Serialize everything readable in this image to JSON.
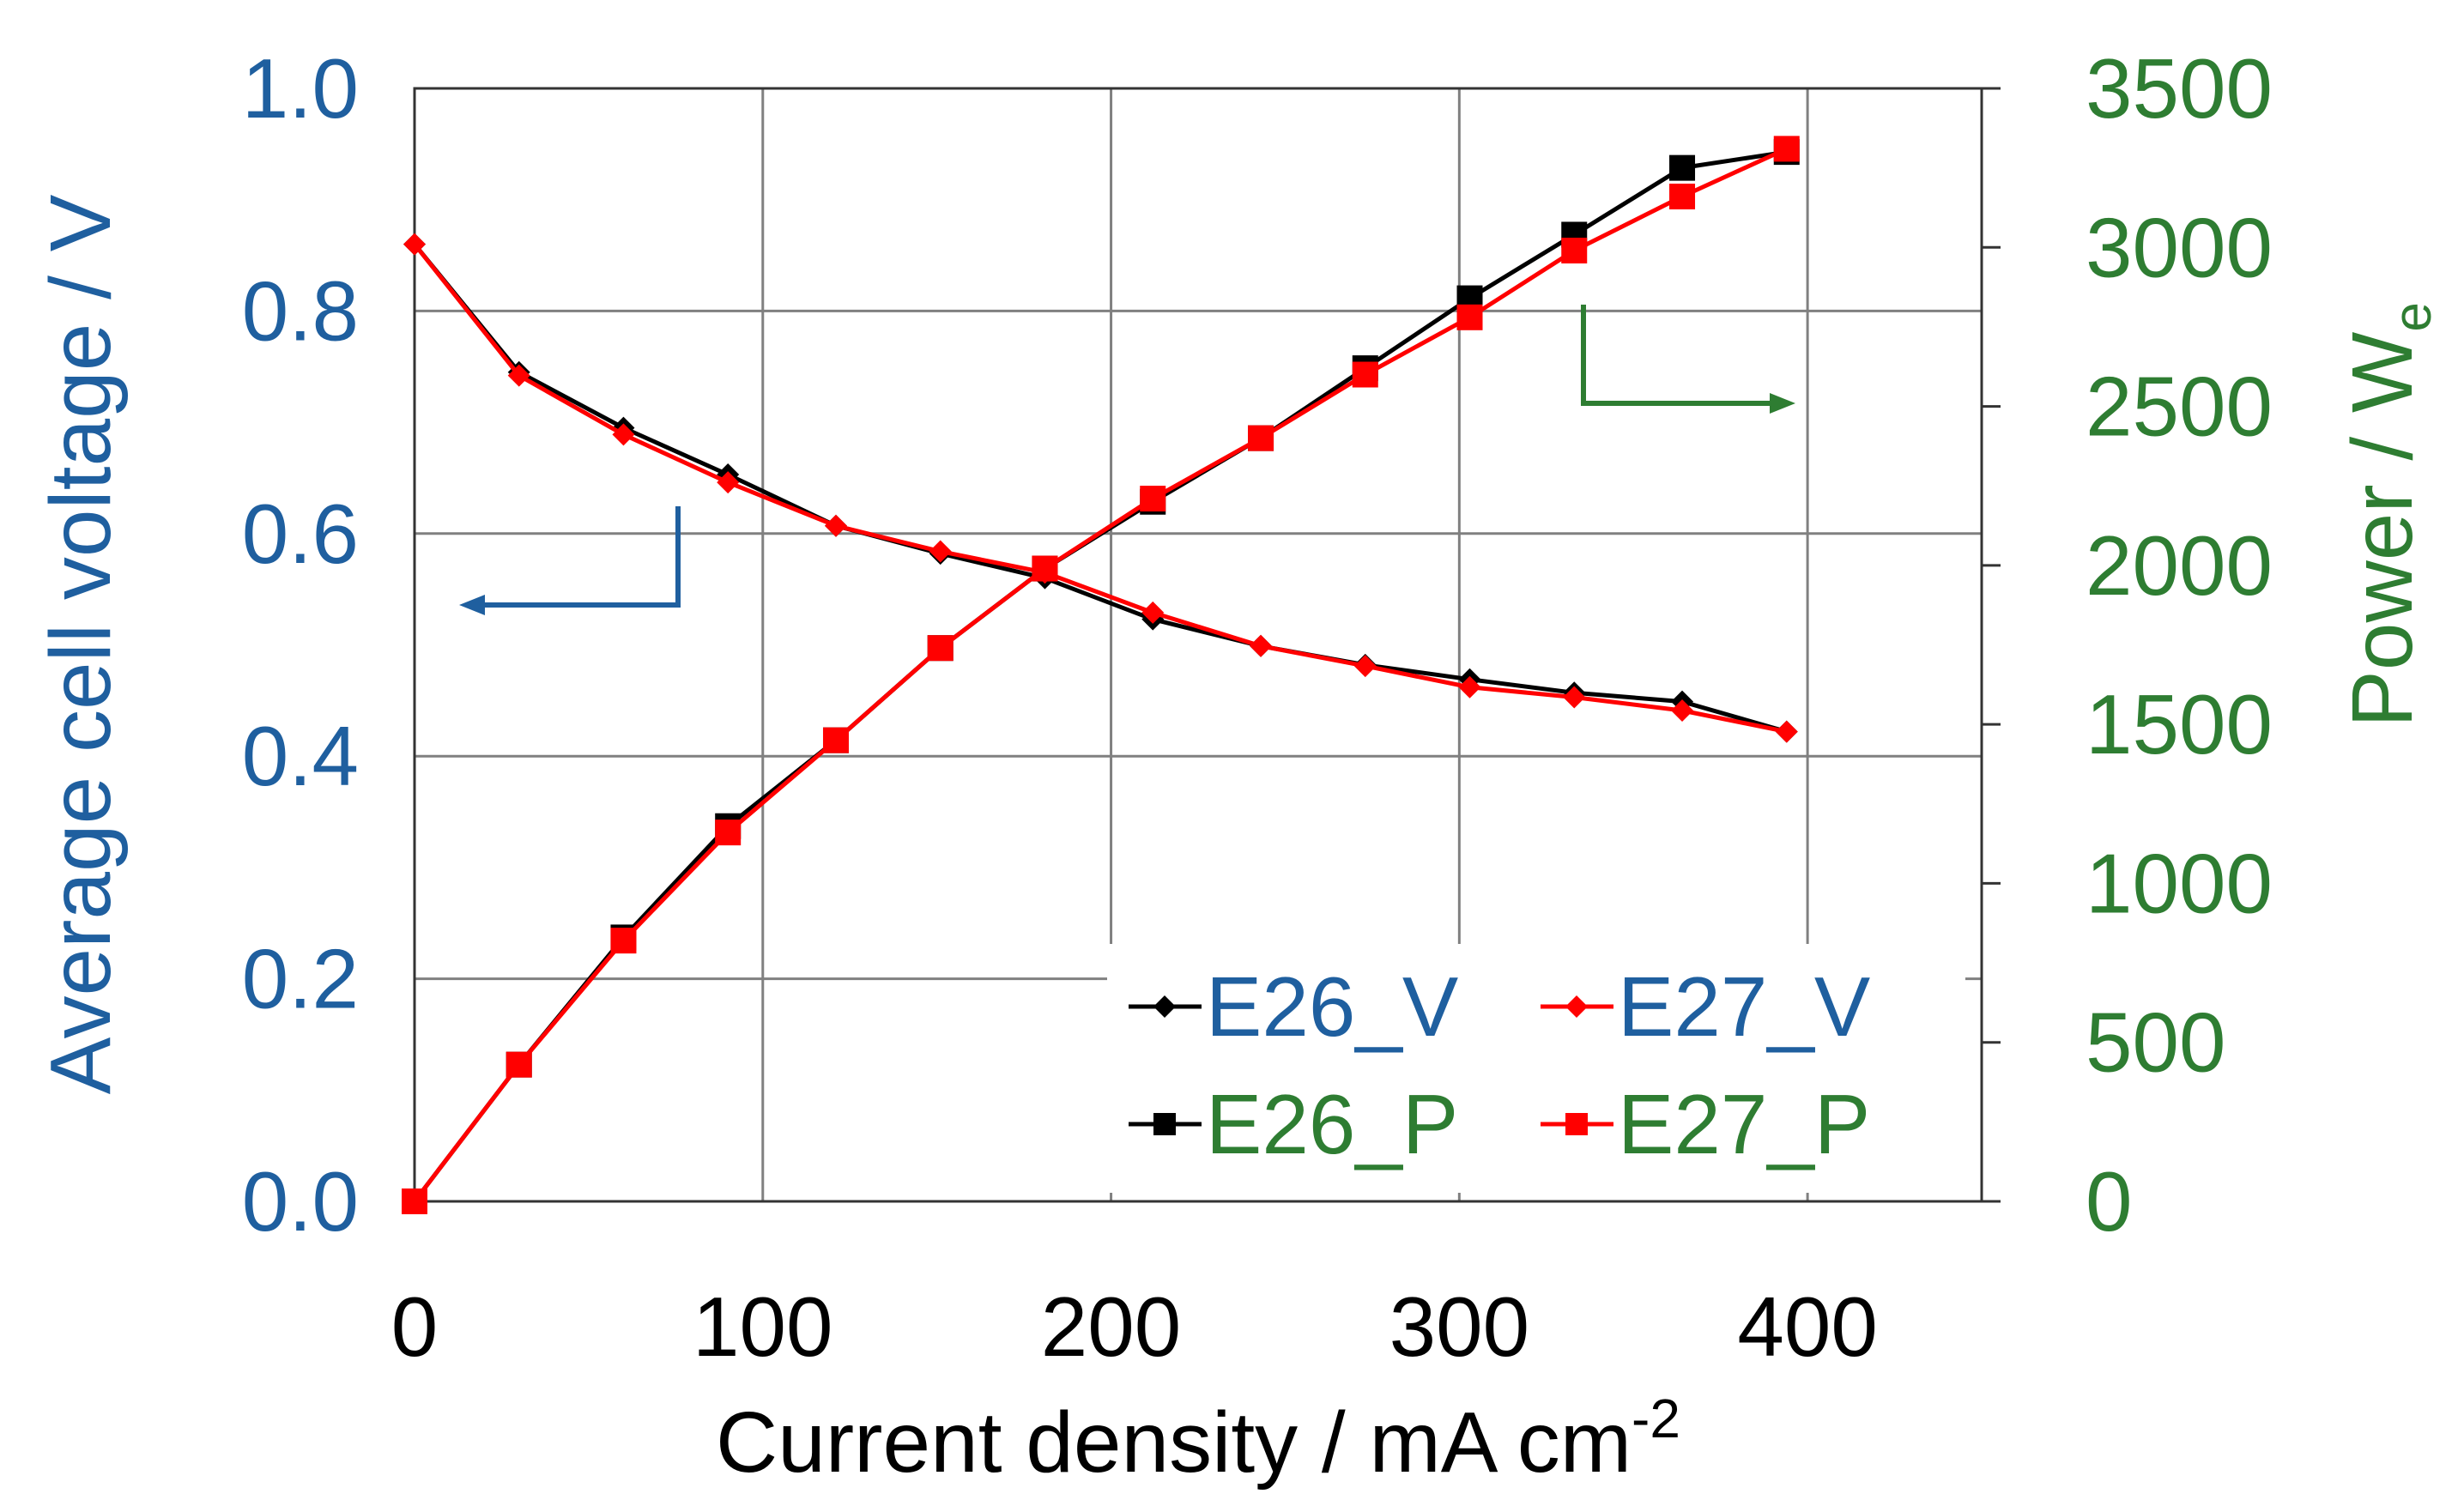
{
  "colors": {
    "left_axis": "#1f5f9f",
    "right_axis": "#2e7d32",
    "e26": "#000000",
    "e27": "#ff0000",
    "grid": "#808080"
  },
  "chart_data": {
    "type": "line",
    "xlabel": "Current density / mA cm",
    "xlabel_sup": "-2",
    "ylabel_left": "Average cell voltage / V",
    "ylabel_right_main": "Power / W",
    "ylabel_right_sub": "e",
    "xlim": [
      0,
      450
    ],
    "ylim_left": [
      0,
      1.0
    ],
    "ylim_right": [
      0,
      3500
    ],
    "x_ticks": [
      "0",
      "100",
      "200",
      "300",
      "400"
    ],
    "y_left_ticks": [
      "0.0",
      "0.2",
      "0.4",
      "0.6",
      "0.8",
      "1.0"
    ],
    "y_right_ticks": [
      "0",
      "500",
      "1000",
      "1500",
      "2000",
      "2500",
      "3000",
      "3500"
    ],
    "series": [
      {
        "name": "E26_V",
        "axis": "left",
        "marker": "diamond",
        "color_key": "e26",
        "x": [
          0,
          30,
          60,
          90,
          121,
          151,
          181,
          212,
          243,
          273,
          303,
          333,
          364,
          394
        ],
        "values": [
          0.86,
          0.745,
          0.695,
          0.653,
          0.607,
          0.582,
          0.56,
          0.523,
          0.499,
          0.482,
          0.469,
          0.457,
          0.449,
          0.422
        ]
      },
      {
        "name": "E27_V",
        "axis": "left",
        "marker": "diamond",
        "color_key": "e27",
        "x": [
          0,
          30,
          60,
          90,
          121,
          151,
          181,
          212,
          243,
          273,
          303,
          333,
          364,
          394
        ],
        "values": [
          0.86,
          0.742,
          0.689,
          0.646,
          0.607,
          0.584,
          0.565,
          0.529,
          0.499,
          0.481,
          0.462,
          0.453,
          0.441,
          0.422
        ]
      },
      {
        "name": "E26_P",
        "axis": "right",
        "marker": "square",
        "color_key": "e26",
        "x": [
          0,
          30,
          60,
          90,
          121,
          151,
          181,
          212,
          243,
          273,
          303,
          333,
          364,
          394
        ],
        "values": [
          0,
          430,
          830,
          1180,
          1450,
          1740,
          1990,
          2200,
          2400,
          2620,
          2840,
          3040,
          3250,
          3300
        ]
      },
      {
        "name": "E27_P",
        "axis": "right",
        "marker": "square",
        "color_key": "e27",
        "x": [
          0,
          30,
          60,
          90,
          121,
          151,
          181,
          212,
          243,
          273,
          303,
          333,
          364,
          394
        ],
        "values": [
          0,
          430,
          820,
          1160,
          1450,
          1740,
          1990,
          2210,
          2400,
          2600,
          2780,
          2990,
          3160,
          3310
        ]
      }
    ],
    "legend": {
      "position": "bottom-right",
      "entries": [
        "E26_V",
        "E27_V",
        "E26_P",
        "E27_P"
      ]
    },
    "annotations": [
      {
        "type": "arrow",
        "direction": "left",
        "refers_to": "left-axis"
      },
      {
        "type": "arrow",
        "direction": "right",
        "refers_to": "right-axis"
      }
    ]
  }
}
